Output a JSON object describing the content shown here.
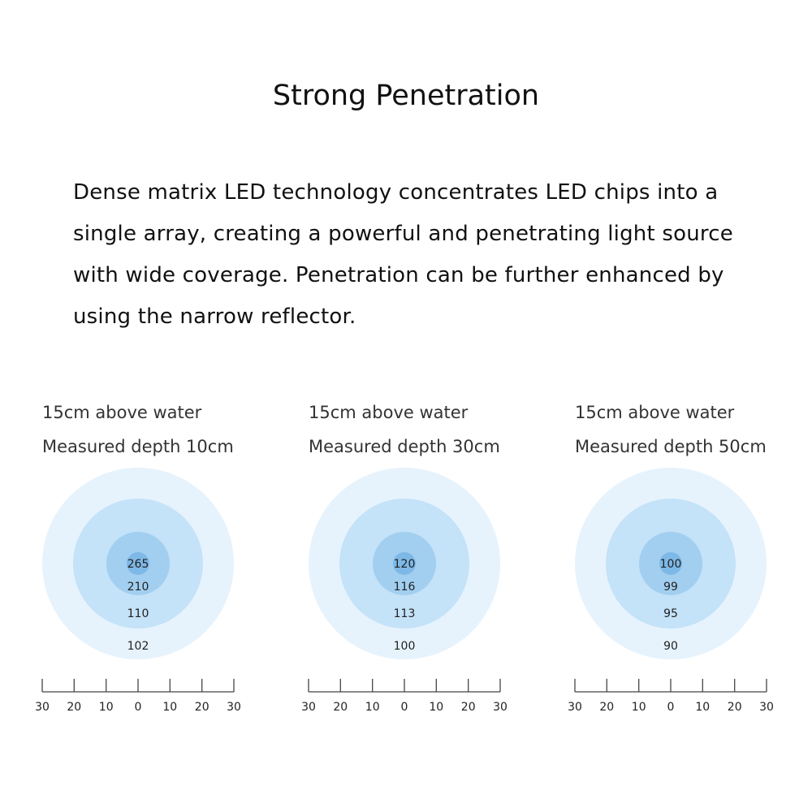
{
  "title": "Strong Penetration",
  "description": "Dense matrix LED technology concentrates LED chips into a single array, creating a powerful and penetrating light source with wide coverage. Penetration can be further enhanced by using the narrow reflector.",
  "colors": {
    "ring_outer": "#e6f3fd",
    "ring_mid": "#c4e2f8",
    "ring_inner": "#a2cff0",
    "ring_core": "#7eb8e6",
    "axis": "#444444"
  },
  "panels": [
    {
      "height_label": "15cm above water",
      "depth_label": "Measured depth 10cm",
      "values": [
        "265",
        "210",
        "110",
        "102"
      ],
      "ticks": [
        "30",
        "20",
        "10",
        "0",
        "10",
        "20",
        "30"
      ]
    },
    {
      "height_label": "15cm above water",
      "depth_label": "Measured depth 30cm",
      "values": [
        "120",
        "116",
        "113",
        "100"
      ],
      "ticks": [
        "30",
        "20",
        "10",
        "0",
        "10",
        "20",
        "30"
      ]
    },
    {
      "height_label": "15cm above water",
      "depth_label": "Measured depth 50cm",
      "values": [
        "100",
        "99",
        "95",
        "90"
      ],
      "ticks": [
        "30",
        "20",
        "10",
        "0",
        "10",
        "20",
        "30"
      ]
    }
  ]
}
